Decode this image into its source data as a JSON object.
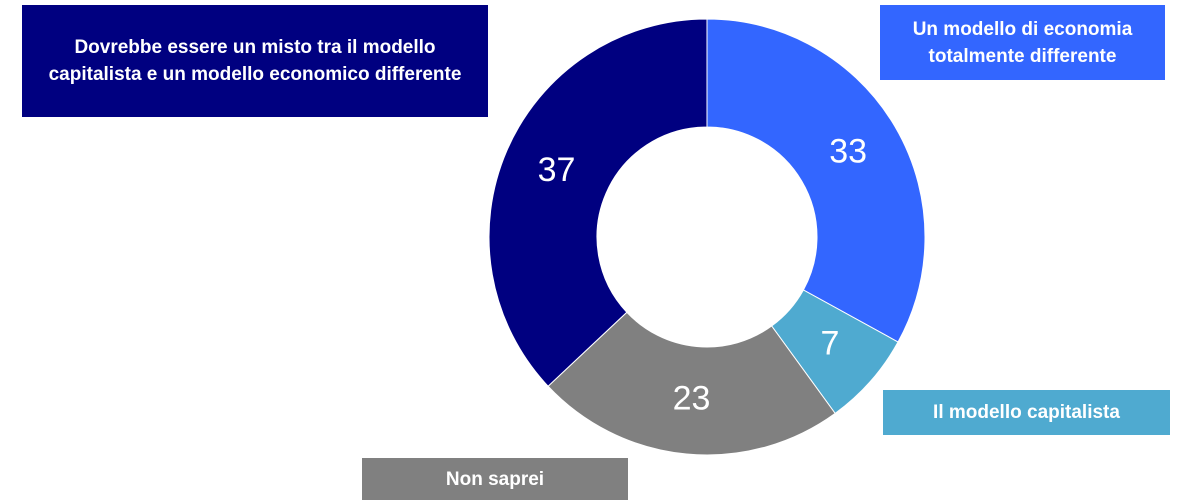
{
  "chart_data": {
    "type": "donut",
    "categories": [
      "Un modello di economia totalmente differente",
      "Il modello capitalista",
      "Non saprei",
      "Dovrebbe essere un misto tra il modello capitalista e un modello economico differente"
    ],
    "values": [
      33,
      7,
      23,
      37
    ],
    "colors": [
      "#3366ff",
      "#4faad0",
      "#808080",
      "#000080"
    ]
  }
}
